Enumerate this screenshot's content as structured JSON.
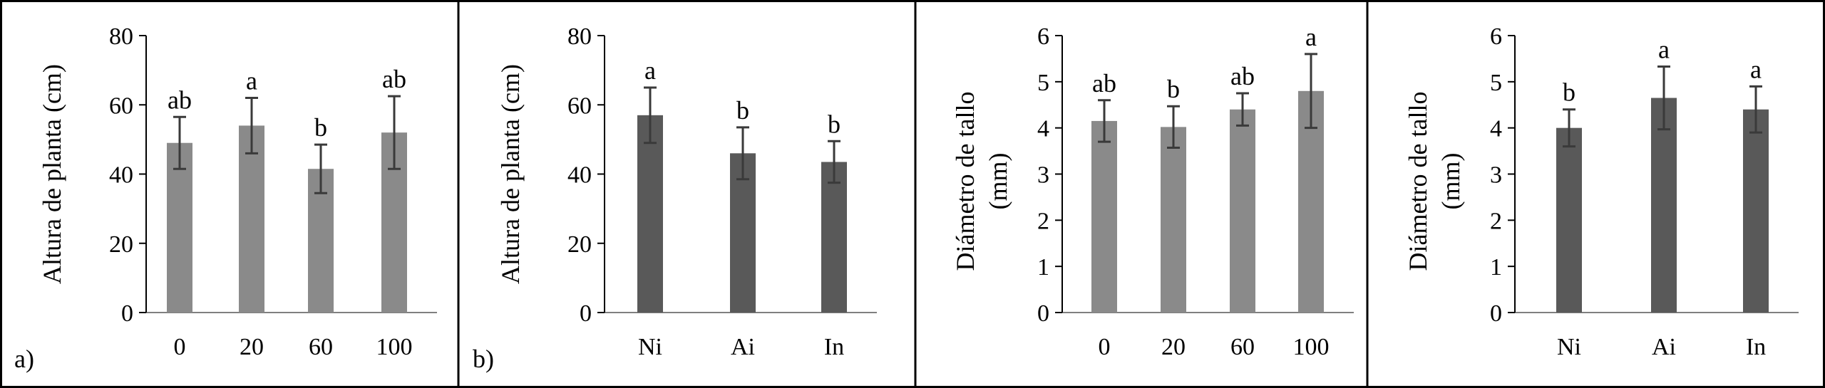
{
  "chart_data": [
    {
      "type": "bar",
      "panel_label": "a)",
      "categories": [
        "0",
        "20",
        "60",
        "100"
      ],
      "values": [
        49,
        54,
        41.5,
        52
      ],
      "errors": [
        7.5,
        8,
        7,
        10.5
      ],
      "significance": [
        "ab",
        "a",
        "b",
        "ab"
      ],
      "ylabel": "Altura de planta (cm)",
      "ylim": [
        0,
        80
      ],
      "yticks": [
        "0",
        "20",
        "40",
        "60",
        "80"
      ],
      "bar_color": "#8a8a8a"
    },
    {
      "type": "bar",
      "panel_label": "b)",
      "categories": [
        "Ni",
        "Ai",
        "In"
      ],
      "values": [
        57,
        46,
        43.5
      ],
      "errors": [
        8,
        7.5,
        6
      ],
      "significance": [
        "a",
        "b",
        "b"
      ],
      "ylabel": "Altura de planta (cm)",
      "ylim": [
        0,
        80
      ],
      "yticks": [
        "0",
        "20",
        "40",
        "60",
        "80"
      ],
      "bar_color": "#595959"
    },
    {
      "type": "bar",
      "panel_label": "",
      "categories": [
        "0",
        "20",
        "60",
        "100"
      ],
      "values": [
        4.15,
        4.02,
        4.4,
        4.8
      ],
      "errors": [
        0.45,
        0.45,
        0.35,
        0.8
      ],
      "significance": [
        "ab",
        "b",
        "ab",
        "a"
      ],
      "ylabel": "Diámetro de tallo (mm)",
      "ylim": [
        0,
        6
      ],
      "yticks": [
        "0",
        "1",
        "2",
        "3",
        "4",
        "5",
        "6"
      ],
      "bar_color": "#8a8a8a"
    },
    {
      "type": "bar",
      "panel_label": "",
      "categories": [
        "Ni",
        "Ai",
        "In"
      ],
      "values": [
        4.0,
        4.65,
        4.4
      ],
      "errors": [
        0.4,
        0.68,
        0.5
      ],
      "significance": [
        "b",
        "a",
        "a"
      ],
      "ylabel": "Diámetro de tallo (mm)",
      "ylim": [
        0,
        6
      ],
      "yticks": [
        "0",
        "1",
        "2",
        "3",
        "4",
        "5",
        "6"
      ],
      "bar_color": "#595959"
    }
  ]
}
